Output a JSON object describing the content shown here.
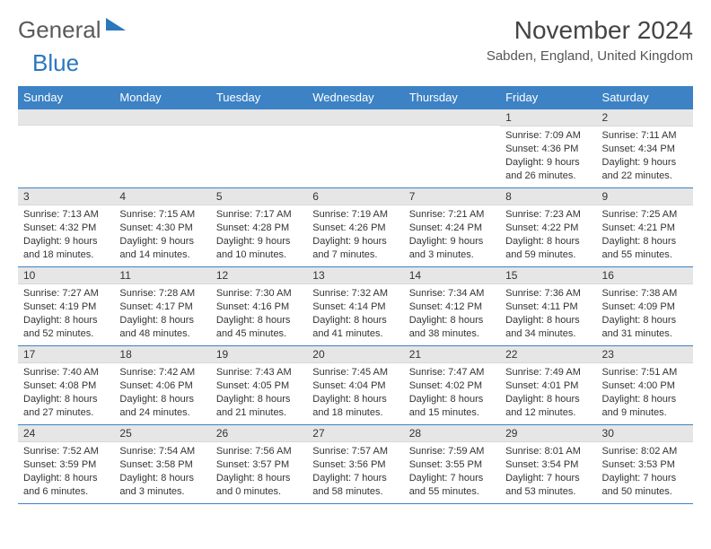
{
  "brand": {
    "part1": "General",
    "part2": "Blue"
  },
  "title": "November 2024",
  "location": "Sabden, England, United Kingdom",
  "columns": [
    "Sunday",
    "Monday",
    "Tuesday",
    "Wednesday",
    "Thursday",
    "Friday",
    "Saturday"
  ],
  "colors": {
    "header_bg": "#3c82c4",
    "header_fg": "#ffffff",
    "daynum_bg": "#e6e6e6",
    "border": "#3c82c4",
    "brand_blue": "#2b77bd"
  },
  "weeks": [
    [
      null,
      null,
      null,
      null,
      null,
      {
        "n": "1",
        "sunrise": "7:09 AM",
        "sunset": "4:36 PM",
        "day_h": 9,
        "day_m": 26
      },
      {
        "n": "2",
        "sunrise": "7:11 AM",
        "sunset": "4:34 PM",
        "day_h": 9,
        "day_m": 22
      }
    ],
    [
      {
        "n": "3",
        "sunrise": "7:13 AM",
        "sunset": "4:32 PM",
        "day_h": 9,
        "day_m": 18
      },
      {
        "n": "4",
        "sunrise": "7:15 AM",
        "sunset": "4:30 PM",
        "day_h": 9,
        "day_m": 14
      },
      {
        "n": "5",
        "sunrise": "7:17 AM",
        "sunset": "4:28 PM",
        "day_h": 9,
        "day_m": 10
      },
      {
        "n": "6",
        "sunrise": "7:19 AM",
        "sunset": "4:26 PM",
        "day_h": 9,
        "day_m": 7
      },
      {
        "n": "7",
        "sunrise": "7:21 AM",
        "sunset": "4:24 PM",
        "day_h": 9,
        "day_m": 3
      },
      {
        "n": "8",
        "sunrise": "7:23 AM",
        "sunset": "4:22 PM",
        "day_h": 8,
        "day_m": 59
      },
      {
        "n": "9",
        "sunrise": "7:25 AM",
        "sunset": "4:21 PM",
        "day_h": 8,
        "day_m": 55
      }
    ],
    [
      {
        "n": "10",
        "sunrise": "7:27 AM",
        "sunset": "4:19 PM",
        "day_h": 8,
        "day_m": 52
      },
      {
        "n": "11",
        "sunrise": "7:28 AM",
        "sunset": "4:17 PM",
        "day_h": 8,
        "day_m": 48
      },
      {
        "n": "12",
        "sunrise": "7:30 AM",
        "sunset": "4:16 PM",
        "day_h": 8,
        "day_m": 45
      },
      {
        "n": "13",
        "sunrise": "7:32 AM",
        "sunset": "4:14 PM",
        "day_h": 8,
        "day_m": 41
      },
      {
        "n": "14",
        "sunrise": "7:34 AM",
        "sunset": "4:12 PM",
        "day_h": 8,
        "day_m": 38
      },
      {
        "n": "15",
        "sunrise": "7:36 AM",
        "sunset": "4:11 PM",
        "day_h": 8,
        "day_m": 34
      },
      {
        "n": "16",
        "sunrise": "7:38 AM",
        "sunset": "4:09 PM",
        "day_h": 8,
        "day_m": 31
      }
    ],
    [
      {
        "n": "17",
        "sunrise": "7:40 AM",
        "sunset": "4:08 PM",
        "day_h": 8,
        "day_m": 27
      },
      {
        "n": "18",
        "sunrise": "7:42 AM",
        "sunset": "4:06 PM",
        "day_h": 8,
        "day_m": 24
      },
      {
        "n": "19",
        "sunrise": "7:43 AM",
        "sunset": "4:05 PM",
        "day_h": 8,
        "day_m": 21
      },
      {
        "n": "20",
        "sunrise": "7:45 AM",
        "sunset": "4:04 PM",
        "day_h": 8,
        "day_m": 18
      },
      {
        "n": "21",
        "sunrise": "7:47 AM",
        "sunset": "4:02 PM",
        "day_h": 8,
        "day_m": 15
      },
      {
        "n": "22",
        "sunrise": "7:49 AM",
        "sunset": "4:01 PM",
        "day_h": 8,
        "day_m": 12
      },
      {
        "n": "23",
        "sunrise": "7:51 AM",
        "sunset": "4:00 PM",
        "day_h": 8,
        "day_m": 9
      }
    ],
    [
      {
        "n": "24",
        "sunrise": "7:52 AM",
        "sunset": "3:59 PM",
        "day_h": 8,
        "day_m": 6
      },
      {
        "n": "25",
        "sunrise": "7:54 AM",
        "sunset": "3:58 PM",
        "day_h": 8,
        "day_m": 3
      },
      {
        "n": "26",
        "sunrise": "7:56 AM",
        "sunset": "3:57 PM",
        "day_h": 8,
        "day_m": 0
      },
      {
        "n": "27",
        "sunrise": "7:57 AM",
        "sunset": "3:56 PM",
        "day_h": 7,
        "day_m": 58
      },
      {
        "n": "28",
        "sunrise": "7:59 AM",
        "sunset": "3:55 PM",
        "day_h": 7,
        "day_m": 55
      },
      {
        "n": "29",
        "sunrise": "8:01 AM",
        "sunset": "3:54 PM",
        "day_h": 7,
        "day_m": 53
      },
      {
        "n": "30",
        "sunrise": "8:02 AM",
        "sunset": "3:53 PM",
        "day_h": 7,
        "day_m": 50
      }
    ]
  ],
  "labels": {
    "sunrise": "Sunrise:",
    "sunset": "Sunset:",
    "daylight_prefix": "Daylight:",
    "hours_word": "hours",
    "and_word": "and",
    "minutes_word": "minutes."
  }
}
